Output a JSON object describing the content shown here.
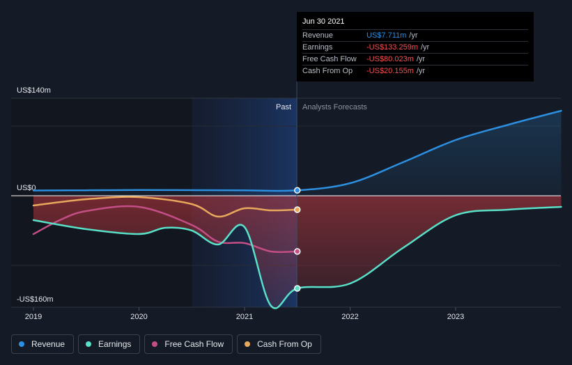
{
  "colors": {
    "revenue": "#2d8fe0",
    "earnings": "#58e0c8",
    "free_cash_flow": "#c44e86",
    "cash_from_op": "#e8a95c",
    "background": "#151b26"
  },
  "tooltip": {
    "date": "Jun 30 2021",
    "rows": [
      {
        "label": "Revenue",
        "value": "US$7.711m",
        "unit": "/yr",
        "color": "#2d8fe0"
      },
      {
        "label": "Earnings",
        "value": "-US$133.259m",
        "unit": "/yr",
        "color": "#ff4c4c"
      },
      {
        "label": "Free Cash Flow",
        "value": "-US$80.023m",
        "unit": "/yr",
        "color": "#ff4c4c"
      },
      {
        "label": "Cash From Op",
        "value": "-US$20.155m",
        "unit": "/yr",
        "color": "#ff4c4c"
      }
    ]
  },
  "legend": [
    {
      "label": "Revenue",
      "color": "#2d8fe0",
      "icon": "revenue-dot-icon"
    },
    {
      "label": "Earnings",
      "color": "#58e0c8",
      "icon": "earnings-dot-icon"
    },
    {
      "label": "Free Cash Flow",
      "color": "#c44e86",
      "icon": "free-cash-flow-dot-icon"
    },
    {
      "label": "Cash From Op",
      "color": "#e8a95c",
      "icon": "cash-from-op-dot-icon"
    }
  ],
  "chart_data": {
    "type": "line",
    "title": "",
    "xlabel": "",
    "ylabel": "",
    "unit": "US$ millions",
    "ylim": [
      -160,
      140
    ],
    "xlim": [
      2019.0,
      2023.999
    ],
    "y_labels": {
      "top": "US$140m",
      "zero": "US$0",
      "bottom": "-US$160m"
    },
    "x_ticks": [
      {
        "value": 2019,
        "label": "2019"
      },
      {
        "value": 2020,
        "label": "2020"
      },
      {
        "value": 2021,
        "label": "2021"
      },
      {
        "value": 2022,
        "label": "2022"
      },
      {
        "value": 2023,
        "label": "2023"
      }
    ],
    "past_label": "Past",
    "forecast_label": "Analysts Forecasts",
    "past_highlight_start": 2020.5,
    "divider_x": 2021.5,
    "series": [
      {
        "name": "Revenue",
        "key": "revenue",
        "x": [
          2019.0,
          2019.5,
          2020.0,
          2020.5,
          2021.0,
          2021.5,
          2022.0,
          2022.5,
          2023.0,
          2023.5,
          2024.0
        ],
        "y": [
          7.5,
          7.8,
          8.2,
          8.0,
          7.8,
          7.7,
          18,
          48,
          80,
          102,
          122
        ],
        "marker_x": 2021.5,
        "marker_y": 7.7
      },
      {
        "name": "Earnings",
        "key": "earnings",
        "x": [
          2019.0,
          2019.5,
          2020.0,
          2020.25,
          2020.5,
          2020.75,
          2021.0,
          2021.25,
          2021.5,
          2022.0,
          2022.5,
          2023.0,
          2023.5,
          2024.0
        ],
        "y": [
          -35,
          -48,
          -55,
          -46,
          -50,
          -70,
          -45,
          -158,
          -133,
          -126,
          -75,
          -28,
          -20,
          -16
        ],
        "marker_x": 2021.5,
        "marker_y": -133
      },
      {
        "name": "Free Cash Flow",
        "key": "free_cash_flow",
        "x": [
          2019.0,
          2019.25,
          2019.5,
          2020.0,
          2020.5,
          2020.75,
          2021.0,
          2021.25,
          2021.5
        ],
        "y": [
          -55,
          -35,
          -22,
          -16,
          -42,
          -66,
          -68,
          -80,
          -80
        ],
        "marker_x": 2021.5,
        "marker_y": -80
      },
      {
        "name": "Cash From Op",
        "key": "cash_from_op",
        "x": [
          2019.0,
          2019.5,
          2020.0,
          2020.5,
          2020.75,
          2021.0,
          2021.25,
          2021.5
        ],
        "y": [
          -14,
          -5,
          -2,
          -12,
          -30,
          -18,
          -21,
          -20
        ],
        "marker_x": 2021.5,
        "marker_y": -20
      }
    ]
  }
}
